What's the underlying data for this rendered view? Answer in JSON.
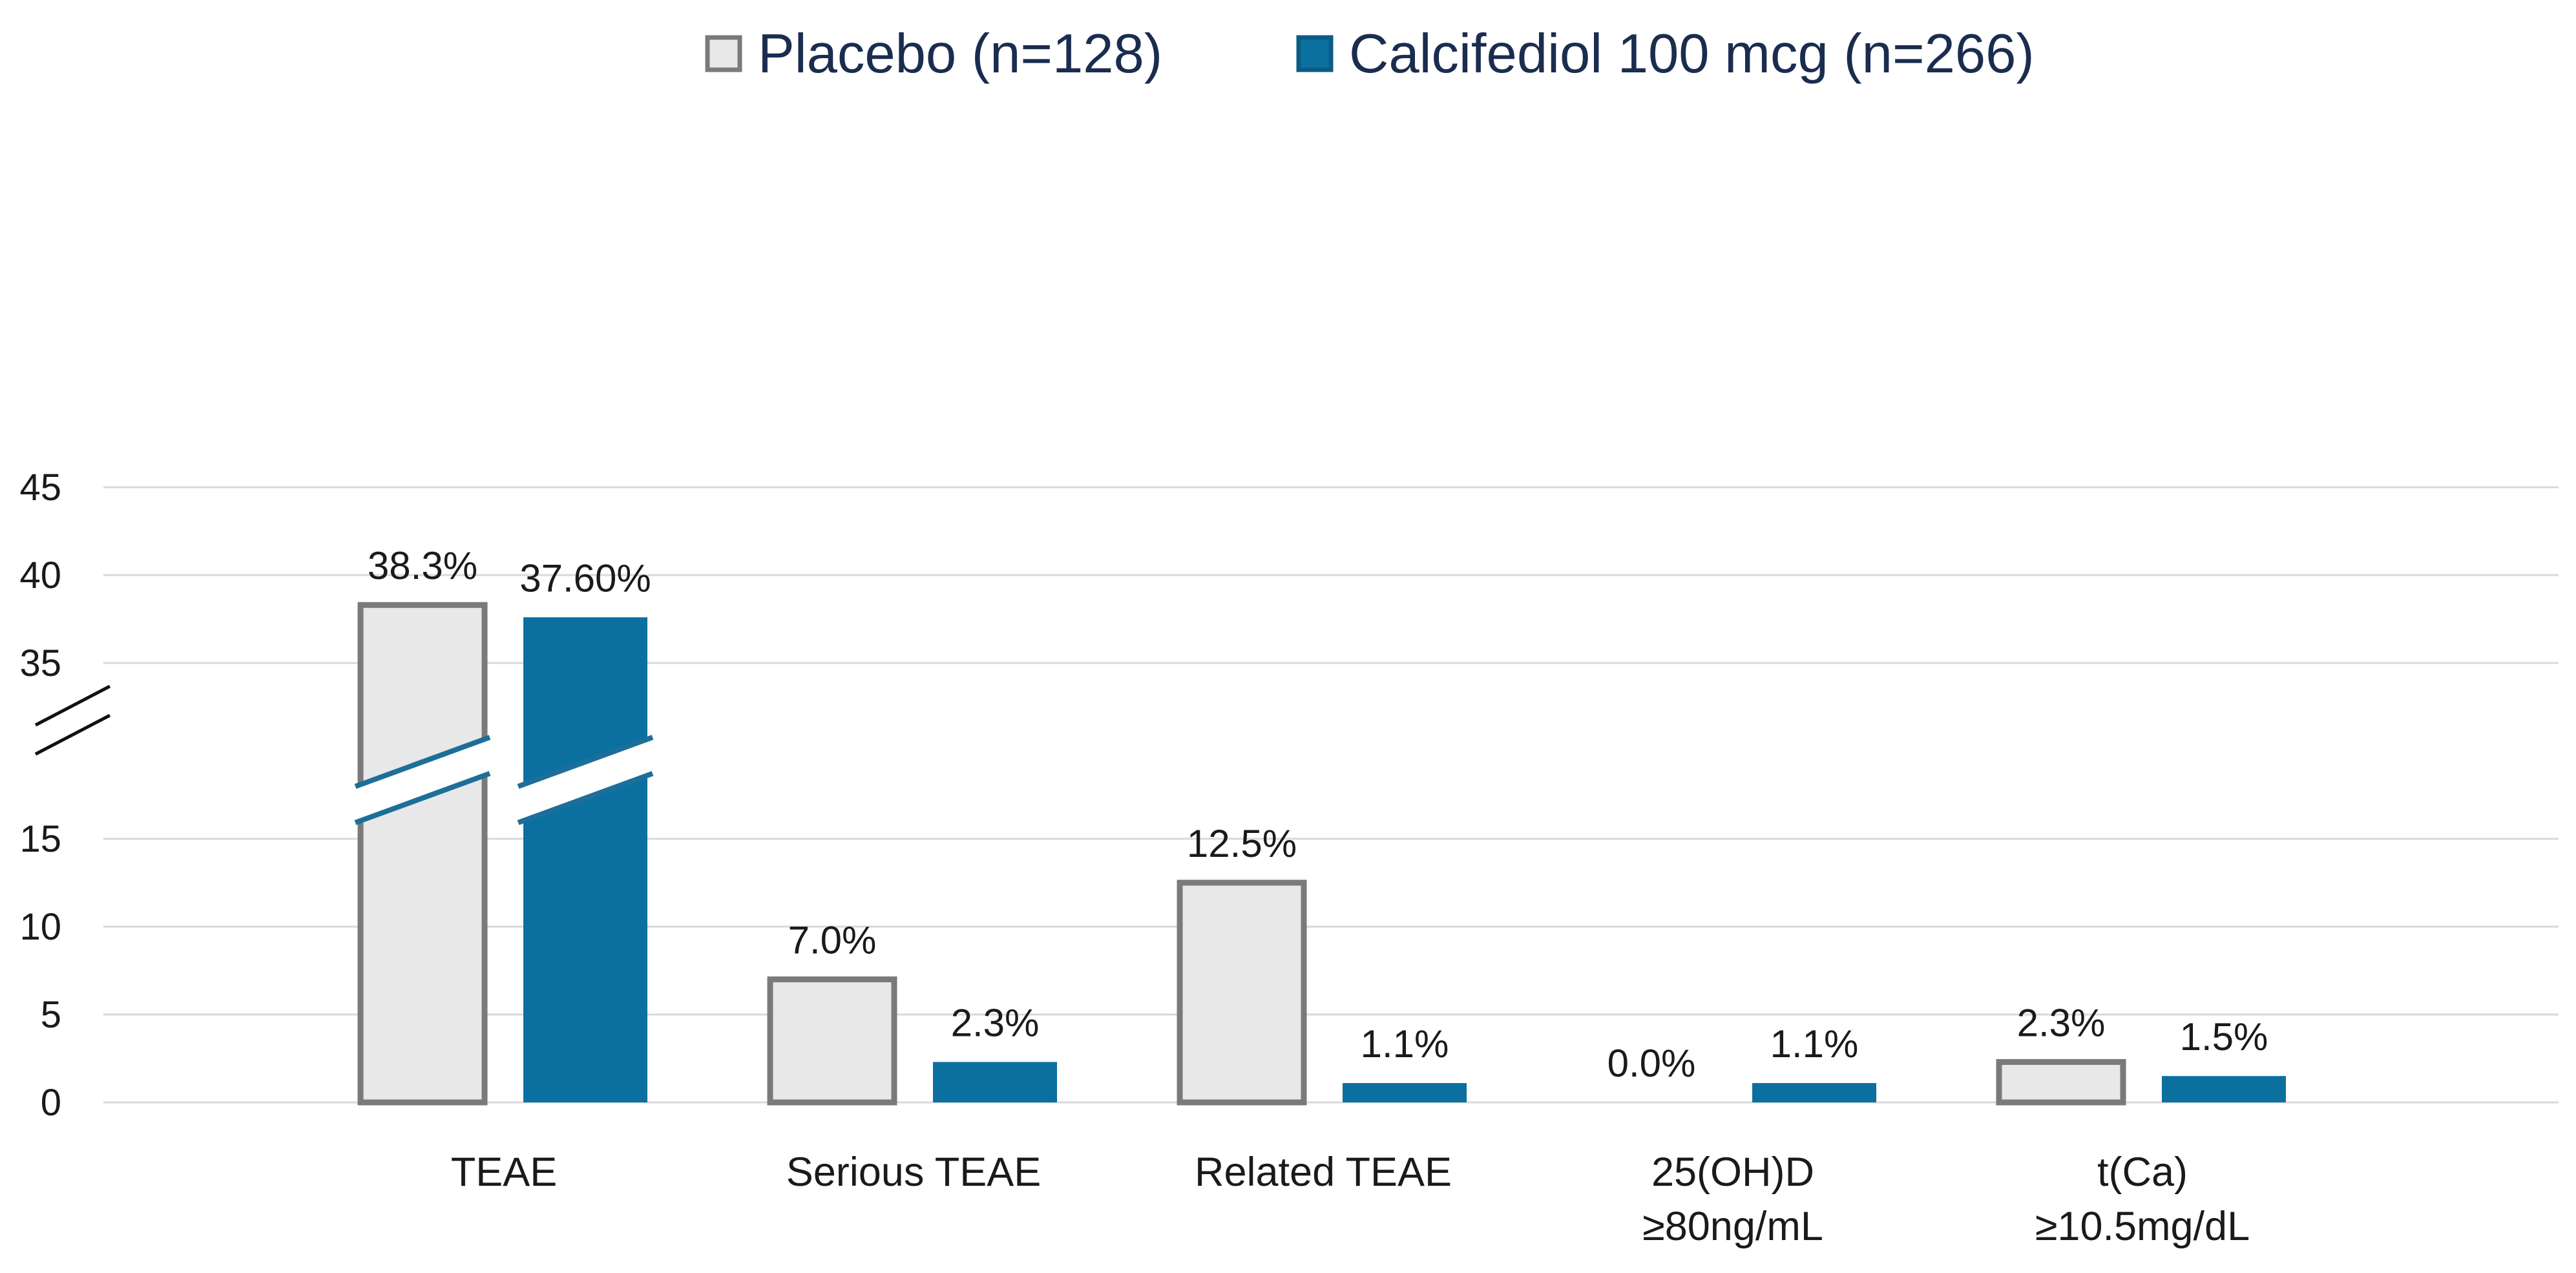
{
  "chart_data": {
    "type": "bar",
    "title": "",
    "xlabel": "",
    "ylabel": "",
    "ylim": [
      0,
      45
    ],
    "axis_break": {
      "from": 20,
      "to": 30
    },
    "y_tick_labels": [
      "0",
      "5",
      "10",
      "15",
      "35",
      "40",
      "45"
    ],
    "categories": [
      [
        "TEAE"
      ],
      [
        "Serious TEAE"
      ],
      [
        "Related TEAE"
      ],
      [
        "25(OH)D",
        "≥80ng/mL"
      ],
      [
        "t(Ca)",
        "≥10.5mg/dL"
      ]
    ],
    "series": [
      {
        "name": "Placebo (n=128)",
        "color": "#e8e8e8",
        "stroke": "#7a7a7a",
        "values": [
          38.3,
          7.0,
          12.5,
          0.0,
          2.3
        ],
        "labels": [
          "38.3%",
          "7.0%",
          "12.5%",
          "0.0%",
          "2.3%"
        ]
      },
      {
        "name": "Calcifediol 100 mcg (n=266)",
        "color": "#0b70a0",
        "stroke": "#0a5c86",
        "values": [
          37.6,
          2.3,
          1.1,
          1.1,
          1.5
        ],
        "labels": [
          "37.60%",
          "2.3%",
          "1.1%",
          "1.1%",
          "1.5%"
        ]
      }
    ],
    "legend_position": "top",
    "grid": true
  }
}
